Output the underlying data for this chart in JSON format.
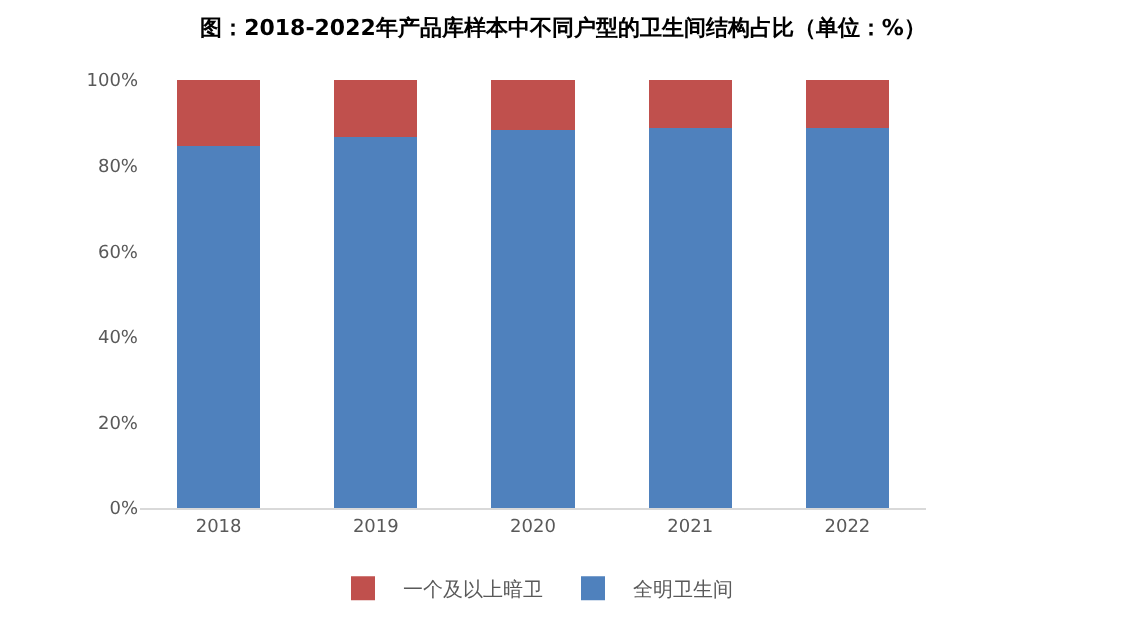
{
  "chart_data": {
    "type": "bar",
    "title": "图：2018-2022年产品库样本中不同户型的卫生间结构占比（单位：%）",
    "categories": [
      "2018",
      "2019",
      "2020",
      "2021",
      "2022"
    ],
    "stacked": true,
    "series": [
      {
        "name": "全明卫生间",
        "color": "#4f81bd",
        "values": [
          84.5,
          86.6,
          88.4,
          88.7,
          88.7
        ]
      },
      {
        "name": "一个及以上暗卫",
        "color": "#c0504d",
        "values": [
          15.5,
          13.4,
          11.6,
          11.3,
          11.3
        ]
      }
    ],
    "ylim": [
      0,
      100
    ],
    "yticks": [
      {
        "value": 0,
        "label": "0%"
      },
      {
        "value": 20,
        "label": "20%"
      },
      {
        "value": 40,
        "label": "40%"
      },
      {
        "value": 60,
        "label": "60%"
      },
      {
        "value": 80,
        "label": "80%"
      },
      {
        "value": 100,
        "label": "100%"
      }
    ],
    "grid": false,
    "legend": "bottom"
  }
}
